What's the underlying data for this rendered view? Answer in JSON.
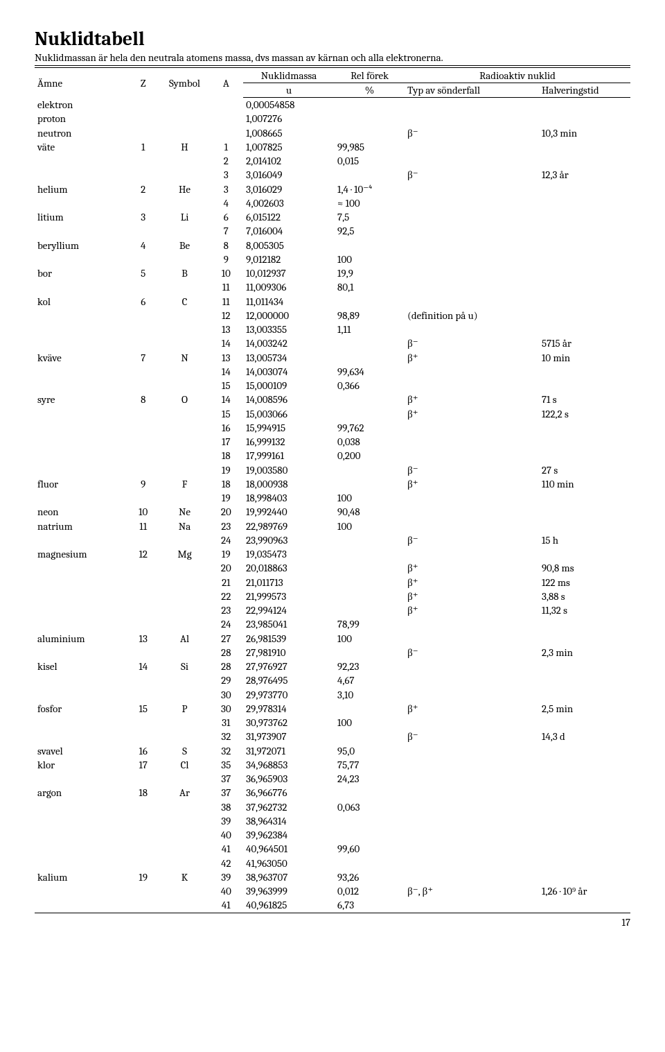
{
  "title": "Nuklidtabell",
  "subtitle": "Nuklidmassan är hela den neutrala atomens massa, dvs massan av kärnan och alla elektronerna.",
  "page_num": "17",
  "header": {
    "amne": "Ämne",
    "z": "Z",
    "symbol": "Symbol",
    "a": "A",
    "nuklidmassa": "Nuklidmassa",
    "rel_forek": "Rel förek",
    "radioaktiv": "Radioaktiv nuklid",
    "u": "u",
    "percent": "%",
    "typ": "Typ av sönderfall",
    "halv": "Halveringstid"
  },
  "rows": [
    {
      "amne": "elektron",
      "z": "",
      "sym": "",
      "a": "",
      "mass": "0,00054858",
      "forek": "",
      "decay": "",
      "halv": ""
    },
    {
      "amne": "proton",
      "z": "",
      "sym": "",
      "a": "",
      "mass": "1,007276",
      "forek": "",
      "decay": "",
      "halv": ""
    },
    {
      "amne": "neutron",
      "z": "",
      "sym": "",
      "a": "",
      "mass": "1,008665",
      "forek": "",
      "decay": "β⁻",
      "halv": "10,3 min"
    },
    {
      "amne": "väte",
      "z": "1",
      "sym": "H",
      "a": "1",
      "mass": "1,007825",
      "forek": "99,985",
      "decay": "",
      "halv": ""
    },
    {
      "amne": "",
      "z": "",
      "sym": "",
      "a": "2",
      "mass": "2,014102",
      "forek": "0,015",
      "decay": "",
      "halv": ""
    },
    {
      "amne": "",
      "z": "",
      "sym": "",
      "a": "3",
      "mass": "3,016049",
      "forek": "",
      "decay": "β⁻",
      "halv": "12,3 år"
    },
    {
      "amne": "helium",
      "z": "2",
      "sym": "He",
      "a": "3",
      "mass": "3,016029",
      "forek": "1,4 · 10⁻⁴",
      "decay": "",
      "halv": ""
    },
    {
      "amne": "",
      "z": "",
      "sym": "",
      "a": "4",
      "mass": "4,002603",
      "forek": "≈ 100",
      "decay": "",
      "halv": ""
    },
    {
      "amne": "litium",
      "z": "3",
      "sym": "Li",
      "a": "6",
      "mass": "6,015122",
      "forek": "7,5",
      "decay": "",
      "halv": ""
    },
    {
      "amne": "",
      "z": "",
      "sym": "",
      "a": "7",
      "mass": "7,016004",
      "forek": "92,5",
      "decay": "",
      "halv": ""
    },
    {
      "amne": "beryllium",
      "z": "4",
      "sym": "Be",
      "a": "8",
      "mass": "8,005305",
      "forek": "",
      "decay": "",
      "halv": ""
    },
    {
      "amne": "",
      "z": "",
      "sym": "",
      "a": "9",
      "mass": "9,012182",
      "forek": "100",
      "decay": "",
      "halv": ""
    },
    {
      "amne": "bor",
      "z": "5",
      "sym": "B",
      "a": "10",
      "mass": "10,012937",
      "forek": "19,9",
      "decay": "",
      "halv": ""
    },
    {
      "amne": "",
      "z": "",
      "sym": "",
      "a": "11",
      "mass": "11,009306",
      "forek": "80,1",
      "decay": "",
      "halv": ""
    },
    {
      "amne": "kol",
      "z": "6",
      "sym": "C",
      "a": "11",
      "mass": "11,011434",
      "forek": "",
      "decay": "",
      "halv": ""
    },
    {
      "amne": "",
      "z": "",
      "sym": "",
      "a": "12",
      "mass": "12,000000",
      "forek": "98,89",
      "decay": "(definition på u)",
      "halv": ""
    },
    {
      "amne": "",
      "z": "",
      "sym": "",
      "a": "13",
      "mass": "13,003355",
      "forek": "1,11",
      "decay": "",
      "halv": ""
    },
    {
      "amne": "",
      "z": "",
      "sym": "",
      "a": "14",
      "mass": "14,003242",
      "forek": "",
      "decay": "β⁻",
      "halv": "5715 år"
    },
    {
      "amne": "kväve",
      "z": "7",
      "sym": "N",
      "a": "13",
      "mass": "13,005734",
      "forek": "",
      "decay": "β⁺",
      "halv": "10 min"
    },
    {
      "amne": "",
      "z": "",
      "sym": "",
      "a": "14",
      "mass": "14,003074",
      "forek": "99,634",
      "decay": "",
      "halv": ""
    },
    {
      "amne": "",
      "z": "",
      "sym": "",
      "a": "15",
      "mass": "15,000109",
      "forek": "0,366",
      "decay": "",
      "halv": ""
    },
    {
      "amne": "syre",
      "z": "8",
      "sym": "O",
      "a": "14",
      "mass": "14,008596",
      "forek": "",
      "decay": "β⁺",
      "halv": "71 s"
    },
    {
      "amne": "",
      "z": "",
      "sym": "",
      "a": "15",
      "mass": "15,003066",
      "forek": "",
      "decay": "β⁺",
      "halv": "122,2 s"
    },
    {
      "amne": "",
      "z": "",
      "sym": "",
      "a": "16",
      "mass": "15,994915",
      "forek": "99,762",
      "decay": "",
      "halv": ""
    },
    {
      "amne": "",
      "z": "",
      "sym": "",
      "a": "17",
      "mass": "16,999132",
      "forek": "0,038",
      "decay": "",
      "halv": ""
    },
    {
      "amne": "",
      "z": "",
      "sym": "",
      "a": "18",
      "mass": "17,999161",
      "forek": "0,200",
      "decay": "",
      "halv": ""
    },
    {
      "amne": "",
      "z": "",
      "sym": "",
      "a": "19",
      "mass": "19,003580",
      "forek": "",
      "decay": "β⁻",
      "halv": "27 s"
    },
    {
      "amne": "fluor",
      "z": "9",
      "sym": "F",
      "a": "18",
      "mass": "18,000938",
      "forek": "",
      "decay": "β⁺",
      "halv": "110 min"
    },
    {
      "amne": "",
      "z": "",
      "sym": "",
      "a": "19",
      "mass": "18,998403",
      "forek": "100",
      "decay": "",
      "halv": ""
    },
    {
      "amne": "neon",
      "z": "10",
      "sym": "Ne",
      "a": "20",
      "mass": "19,992440",
      "forek": "90,48",
      "decay": "",
      "halv": ""
    },
    {
      "amne": "natrium",
      "z": "11",
      "sym": "Na",
      "a": "23",
      "mass": "22,989769",
      "forek": "100",
      "decay": "",
      "halv": ""
    },
    {
      "amne": "",
      "z": "",
      "sym": "",
      "a": "24",
      "mass": "23,990963",
      "forek": "",
      "decay": "β⁻",
      "halv": "15 h"
    },
    {
      "amne": "magnesium",
      "z": "12",
      "sym": "Mg",
      "a": "19",
      "mass": "19,035473",
      "forek": "",
      "decay": "",
      "halv": ""
    },
    {
      "amne": "",
      "z": "",
      "sym": "",
      "a": "20",
      "mass": "20,018863",
      "forek": "",
      "decay": "β⁺",
      "halv": "90,8 ms"
    },
    {
      "amne": "",
      "z": "",
      "sym": "",
      "a": "21",
      "mass": "21,011713",
      "forek": "",
      "decay": "β⁺",
      "halv": "122 ms"
    },
    {
      "amne": "",
      "z": "",
      "sym": "",
      "a": "22",
      "mass": "21,999573",
      "forek": "",
      "decay": "β⁺",
      "halv": "3,88 s"
    },
    {
      "amne": "",
      "z": "",
      "sym": "",
      "a": "23",
      "mass": "22,994124",
      "forek": "",
      "decay": "β⁺",
      "halv": "11,32 s"
    },
    {
      "amne": "",
      "z": "",
      "sym": "",
      "a": "24",
      "mass": "23,985041",
      "forek": "78,99",
      "decay": "",
      "halv": ""
    },
    {
      "amne": "aluminium",
      "z": "13",
      "sym": "Al",
      "a": "27",
      "mass": "26,981539",
      "forek": "100",
      "decay": "",
      "halv": ""
    },
    {
      "amne": "",
      "z": "",
      "sym": "",
      "a": "28",
      "mass": "27,981910",
      "forek": "",
      "decay": "β⁻",
      "halv": "2,3 min"
    },
    {
      "amne": "kisel",
      "z": "14",
      "sym": "Si",
      "a": "28",
      "mass": "27,976927",
      "forek": "92,23",
      "decay": "",
      "halv": ""
    },
    {
      "amne": "",
      "z": "",
      "sym": "",
      "a": "29",
      "mass": "28,976495",
      "forek": "4,67",
      "decay": "",
      "halv": ""
    },
    {
      "amne": "",
      "z": "",
      "sym": "",
      "a": "30",
      "mass": "29,973770",
      "forek": "3,10",
      "decay": "",
      "halv": ""
    },
    {
      "amne": "fosfor",
      "z": "15",
      "sym": "P",
      "a": "30",
      "mass": "29,978314",
      "forek": "",
      "decay": "β⁺",
      "halv": "2,5 min"
    },
    {
      "amne": "",
      "z": "",
      "sym": "",
      "a": "31",
      "mass": "30,973762",
      "forek": "100",
      "decay": "",
      "halv": ""
    },
    {
      "amne": "",
      "z": "",
      "sym": "",
      "a": "32",
      "mass": "31,973907",
      "forek": "",
      "decay": "β⁻",
      "halv": "14,3 d"
    },
    {
      "amne": "svavel",
      "z": "16",
      "sym": "S",
      "a": "32",
      "mass": "31,972071",
      "forek": "95,0",
      "decay": "",
      "halv": ""
    },
    {
      "amne": "klor",
      "z": "17",
      "sym": "Cl",
      "a": "35",
      "mass": "34,968853",
      "forek": "75,77",
      "decay": "",
      "halv": ""
    },
    {
      "amne": "",
      "z": "",
      "sym": "",
      "a": "37",
      "mass": "36,965903",
      "forek": "24,23",
      "decay": "",
      "halv": ""
    },
    {
      "amne": "argon",
      "z": "18",
      "sym": "Ar",
      "a": "37",
      "mass": "36,966776",
      "forek": "",
      "decay": "",
      "halv": ""
    },
    {
      "amne": "",
      "z": "",
      "sym": "",
      "a": "38",
      "mass": "37,962732",
      "forek": "0,063",
      "decay": "",
      "halv": ""
    },
    {
      "amne": "",
      "z": "",
      "sym": "",
      "a": "39",
      "mass": "38,964314",
      "forek": "",
      "decay": "",
      "halv": ""
    },
    {
      "amne": "",
      "z": "",
      "sym": "",
      "a": "40",
      "mass": "39,962384",
      "forek": "",
      "decay": "",
      "halv": ""
    },
    {
      "amne": "",
      "z": "",
      "sym": "",
      "a": "41",
      "mass": "40,964501",
      "forek": "99,60",
      "decay": "",
      "halv": ""
    },
    {
      "amne": "",
      "z": "",
      "sym": "",
      "a": "42",
      "mass": "41,963050",
      "forek": "",
      "decay": "",
      "halv": ""
    },
    {
      "amne": "kalium",
      "z": "19",
      "sym": "K",
      "a": "39",
      "mass": "38,963707",
      "forek": "93,26",
      "decay": "",
      "halv": ""
    },
    {
      "amne": "",
      "z": "",
      "sym": "",
      "a": "40",
      "mass": "39,963999",
      "forek": "0,012",
      "decay": "β⁻, β⁺",
      "halv": "1,26 · 10⁹ år"
    },
    {
      "amne": "",
      "z": "",
      "sym": "",
      "a": "41",
      "mass": "40,961825",
      "forek": "6,73",
      "decay": "",
      "halv": ""
    }
  ]
}
